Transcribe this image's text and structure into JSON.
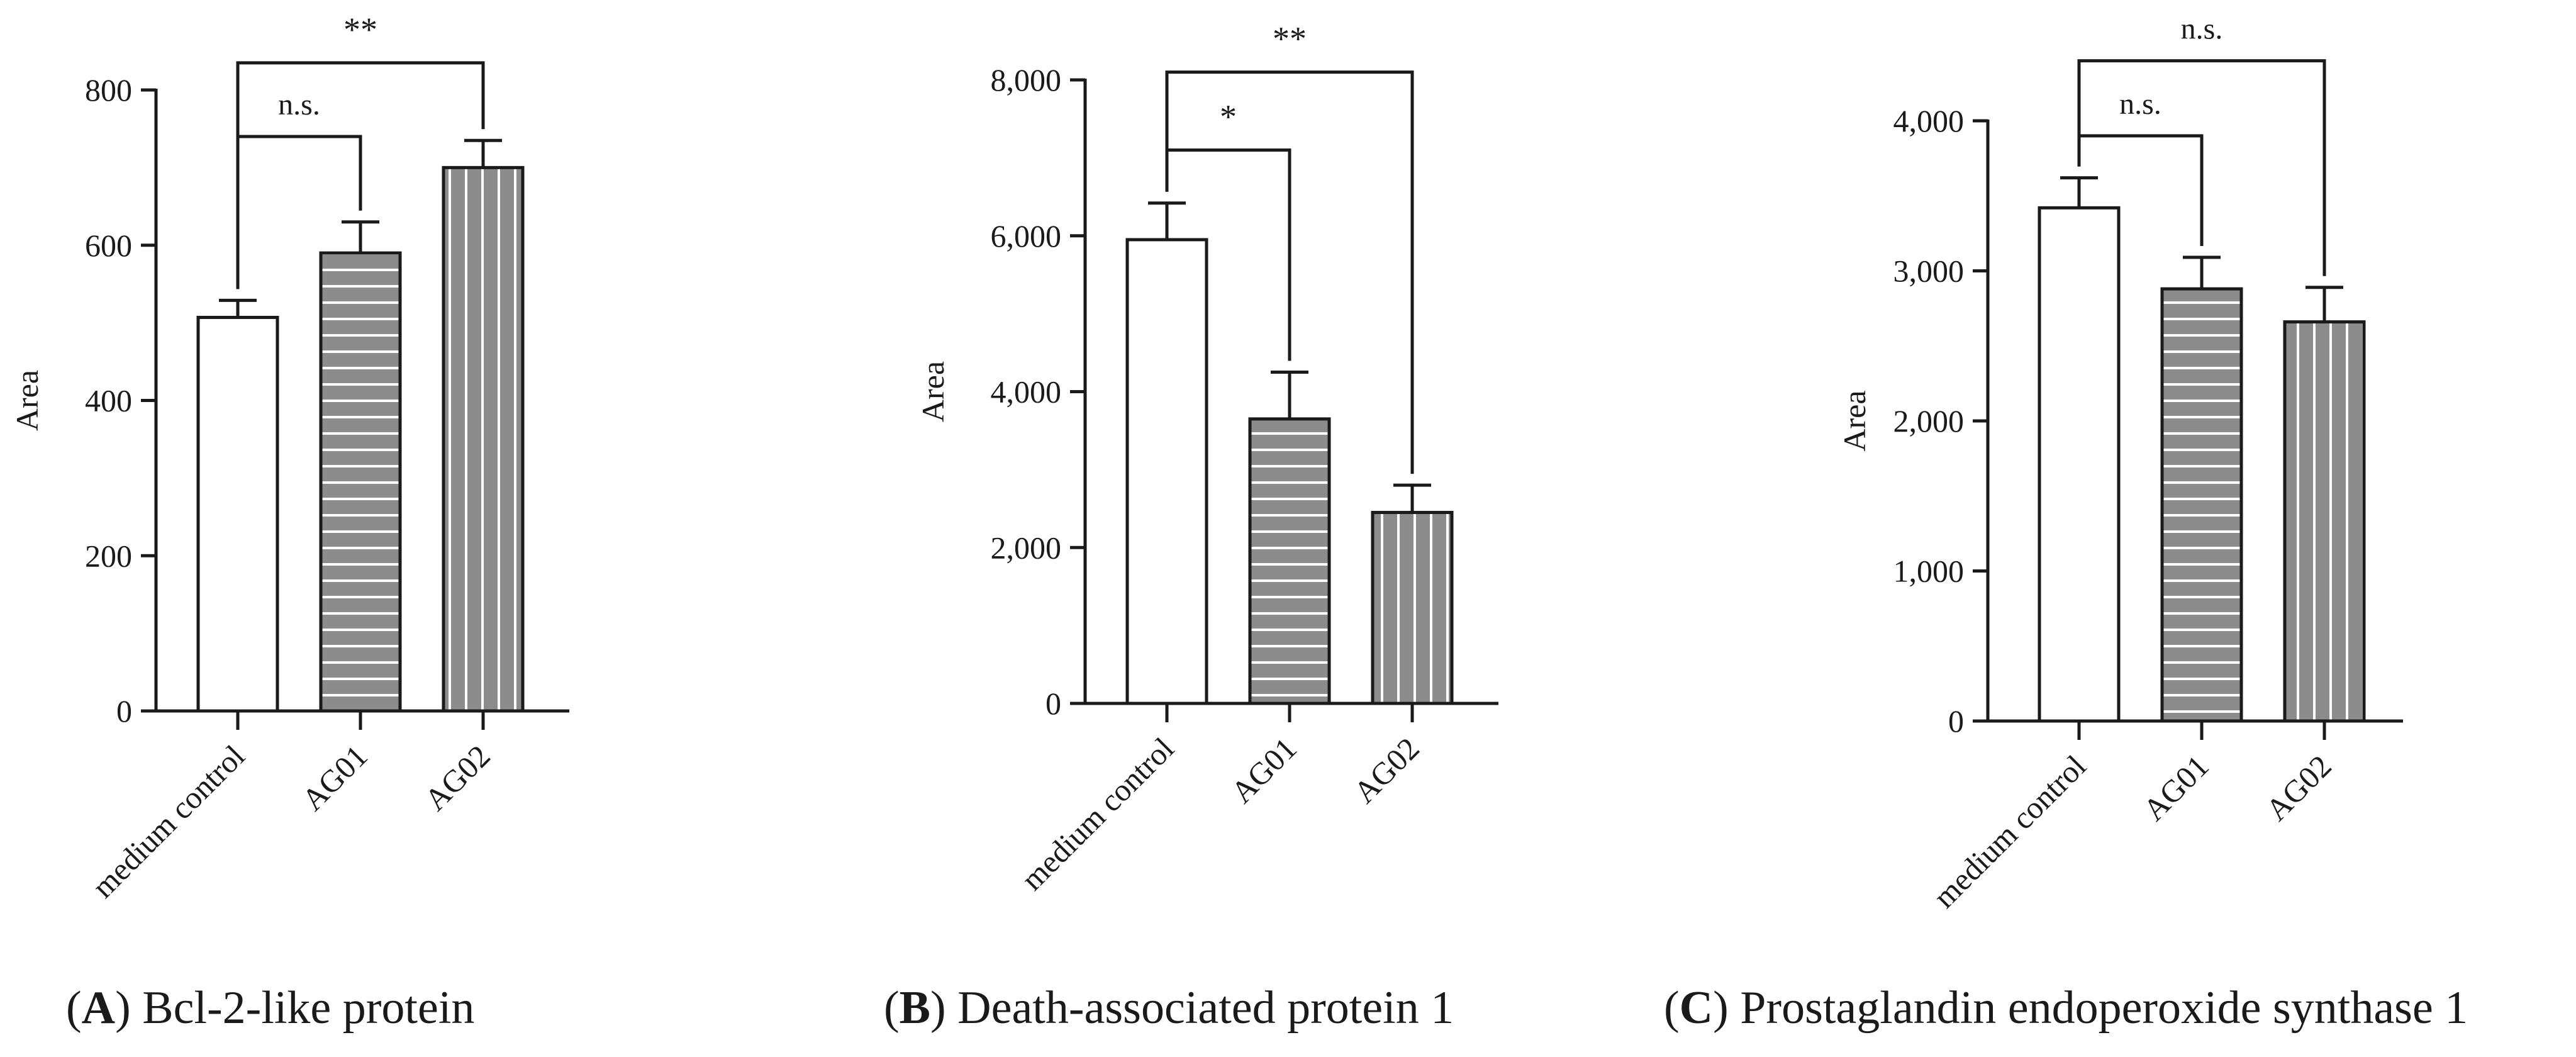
{
  "chart_data": [
    {
      "type": "bar",
      "panel": "A",
      "title": "Bcl-2-like protein",
      "ylabel": "Area",
      "xlabel": "",
      "categories": [
        "medium control",
        "AG01",
        "AG02"
      ],
      "values": [
        507,
        590,
        700
      ],
      "errors": [
        22,
        40,
        35
      ],
      "ylim": [
        0,
        800
      ],
      "yticks": [
        0,
        200,
        400,
        600,
        800
      ],
      "yticklabels": [
        "0",
        "200",
        "400",
        "600",
        "800"
      ],
      "patterns": [
        "none",
        "horizontal",
        "vertical"
      ],
      "significance": [
        {
          "from": 0,
          "to": 1,
          "label": "n.s.",
          "y": 740
        },
        {
          "from": 0,
          "to": 2,
          "label": "**",
          "y": 835
        }
      ]
    },
    {
      "type": "bar",
      "panel": "B",
      "title": "Death-associated protein 1",
      "ylabel": "Area",
      "xlabel": "",
      "categories": [
        "medium control",
        "AG01",
        "AG02"
      ],
      "values": [
        5950,
        3650,
        2450
      ],
      "errors": [
        470,
        600,
        350
      ],
      "ylim": [
        0,
        8000
      ],
      "yticks": [
        0,
        2000,
        4000,
        6000,
        8000
      ],
      "yticklabels": [
        "0",
        "2,000",
        "4,000",
        "6,000",
        "8,000"
      ],
      "patterns": [
        "none",
        "horizontal",
        "vertical"
      ],
      "significance": [
        {
          "from": 0,
          "to": 1,
          "label": "*",
          "y": 7100
        },
        {
          "from": 0,
          "to": 2,
          "label": "**",
          "y": 8100
        }
      ]
    },
    {
      "type": "bar",
      "panel": "C",
      "title": "Prostaglandin endoperoxide synthase 1",
      "ylabel": "Area",
      "xlabel": "",
      "categories": [
        "medium control",
        "AG01",
        "AG02"
      ],
      "values": [
        3420,
        2880,
        2660
      ],
      "errors": [
        200,
        210,
        230
      ],
      "ylim": [
        0,
        4000
      ],
      "yticks": [
        0,
        1000,
        2000,
        3000,
        4000
      ],
      "yticklabels": [
        "0",
        "1,000",
        "2,000",
        "3,000",
        "4,000"
      ],
      "patterns": [
        "none",
        "horizontal",
        "vertical"
      ],
      "significance": [
        {
          "from": 0,
          "to": 1,
          "label": "n.s.",
          "y": 3900
        },
        {
          "from": 0,
          "to": 2,
          "label": "n.s.",
          "y": 4400
        }
      ]
    }
  ],
  "captions": [
    {
      "letter": "A",
      "text": " Bcl-2-like protein"
    },
    {
      "letter": "B",
      "text": " Death-associated protein 1"
    },
    {
      "letter": "C",
      "text": " Prostaglandin endoperoxide synthase 1"
    }
  ],
  "colors": {
    "axis": "#1a1a1a",
    "fill_control": "#ffffff",
    "fill_treated": "#8c8c8c",
    "stripe": "#ffffff"
  }
}
